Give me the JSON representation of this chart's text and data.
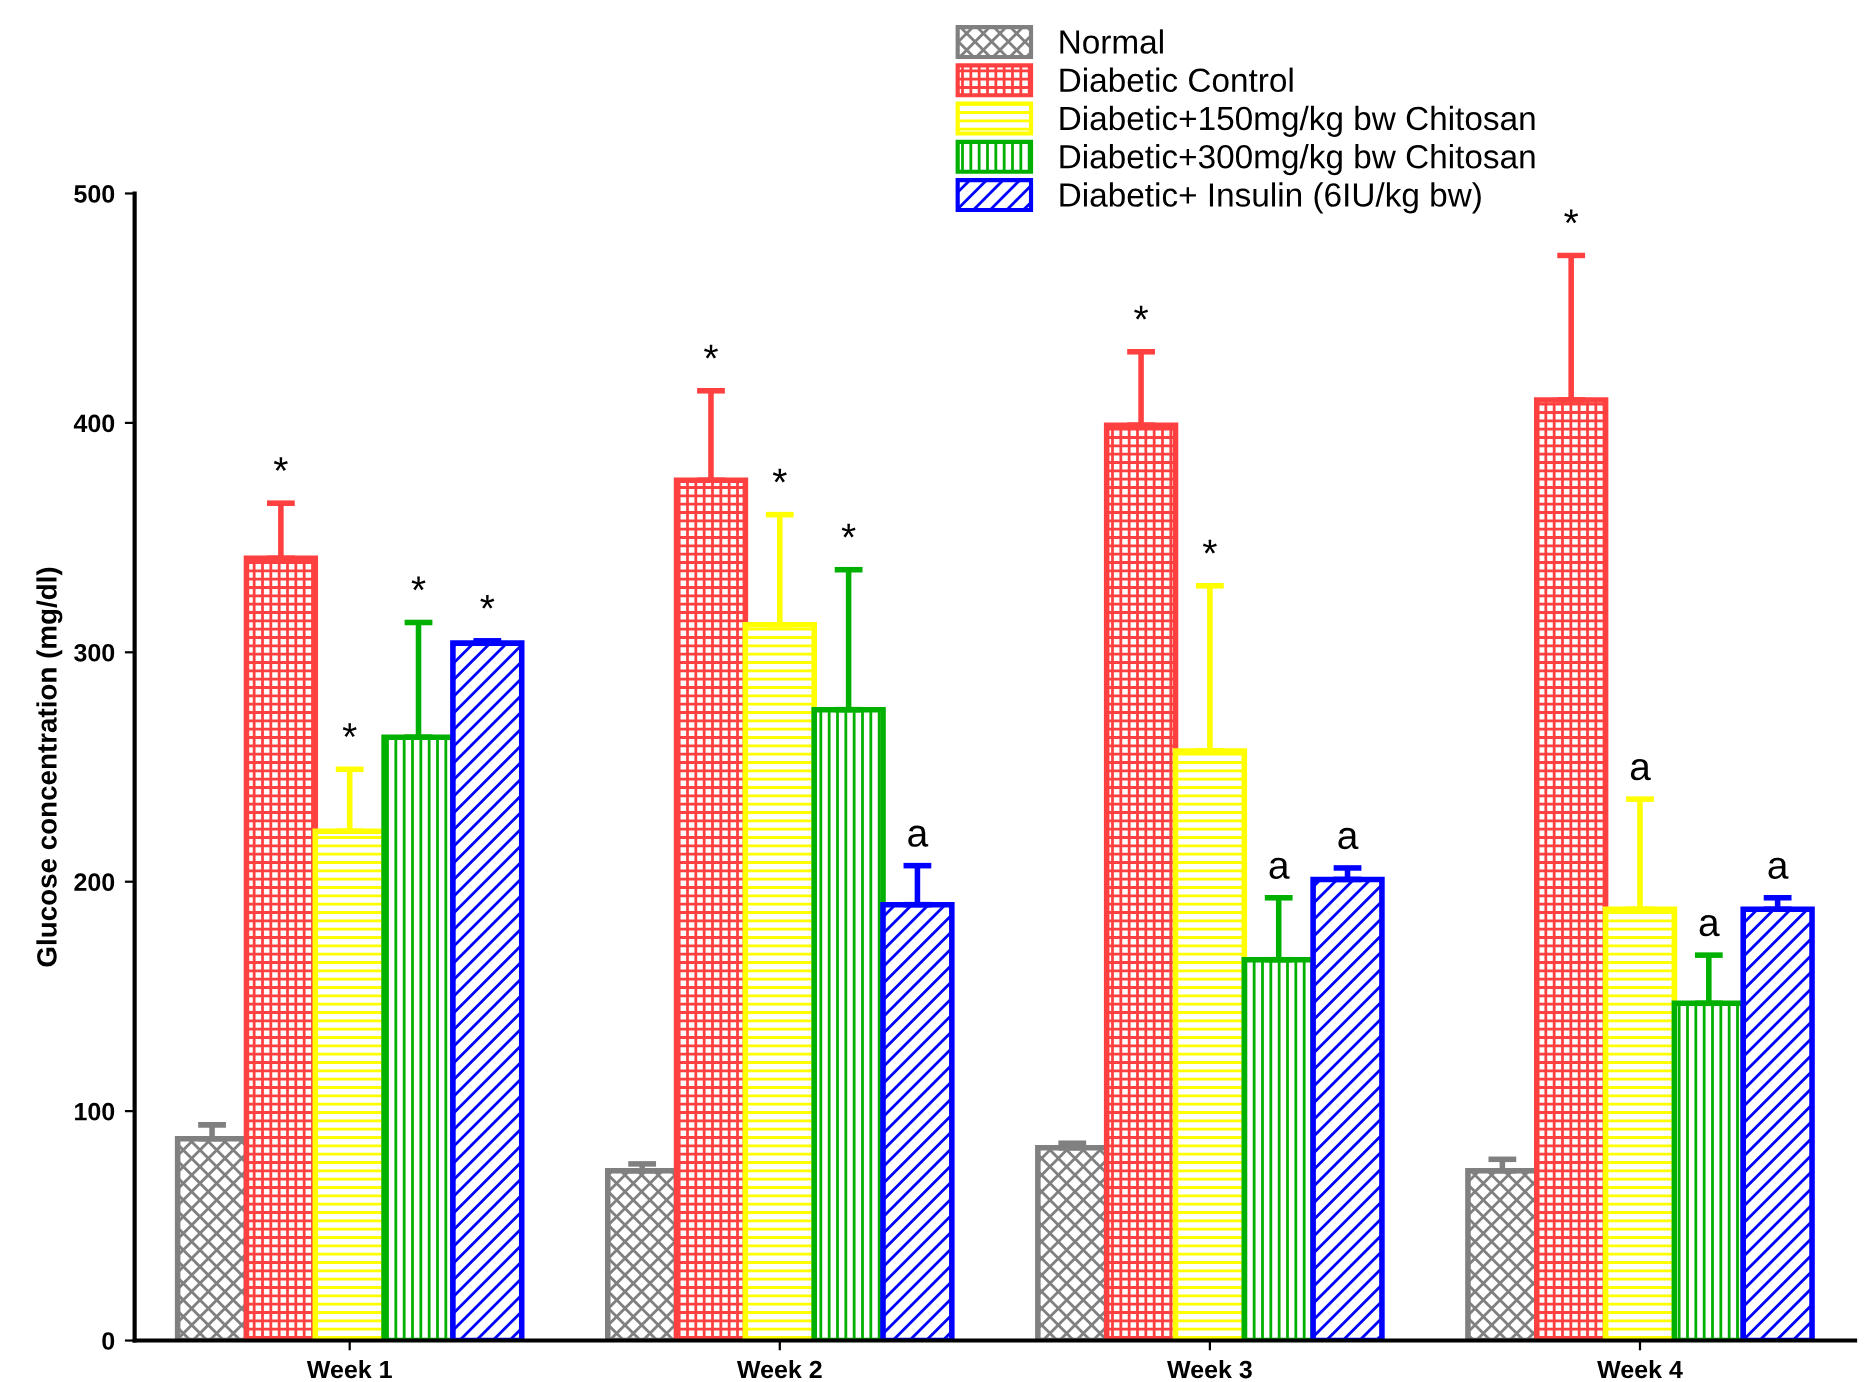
{
  "chart_data": {
    "type": "bar",
    "ylabel": "Glucose concentration (mg/dl)",
    "categories": [
      "Week 1",
      "Week 2",
      "Week 3",
      "Week 4"
    ],
    "ylim": [
      0,
      500
    ],
    "yticks": [
      0,
      100,
      200,
      300,
      400,
      500
    ],
    "grid": false,
    "legend": "top",
    "series": [
      {
        "name": "Normal",
        "color": "#808080",
        "values": [
          88,
          74,
          84,
          74
        ],
        "errors": [
          [
            88,
            94
          ],
          [
            74,
            77
          ],
          [
            84,
            86
          ],
          [
            74,
            79
          ]
        ]
      },
      {
        "name": "Diabetic Control",
        "color": "#ff4040",
        "values": [
          341,
          375,
          399,
          410
        ],
        "errors": [
          [
            341,
            365
          ],
          [
            375,
            414
          ],
          [
            399,
            431
          ],
          [
            410,
            473
          ]
        ]
      },
      {
        "name": "Diabetic+150mg/kg bw Chitosan",
        "color": "#ffff00",
        "values": [
          222,
          312,
          257,
          188
        ],
        "errors": [
          [
            222,
            249
          ],
          [
            312,
            360
          ],
          [
            257,
            329
          ],
          [
            188,
            236
          ]
        ]
      },
      {
        "name": "Diabetic+300mg/kg bw Chitosan",
        "color": "#00b000",
        "values": [
          263,
          275,
          166,
          147
        ],
        "errors": [
          [
            263,
            313
          ],
          [
            275,
            336
          ],
          [
            166,
            193
          ],
          [
            147,
            168
          ]
        ]
      },
      {
        "name": "Diabetic+ Insulin (6IU/kg bw)",
        "color": "#0000ff",
        "values": [
          304,
          190,
          201,
          188
        ],
        "errors": [
          [
            304,
            305
          ],
          [
            190,
            207
          ],
          [
            201,
            206
          ],
          [
            188,
            193
          ]
        ]
      }
    ],
    "annotations": [
      "*",
      "*",
      "*",
      "*",
      "*",
      "*",
      "*",
      "a",
      "*",
      "*",
      "a",
      "a",
      "*",
      "a",
      "a",
      "a"
    ]
  }
}
